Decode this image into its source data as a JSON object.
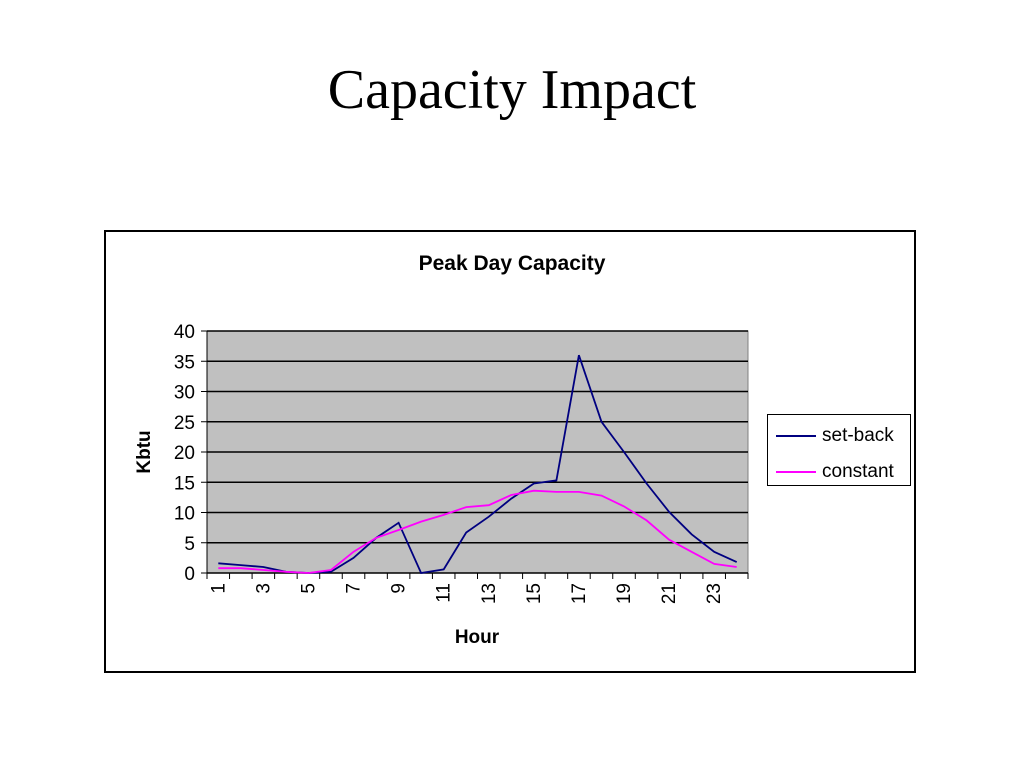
{
  "slide": {
    "title": "Capacity Impact"
  },
  "chart_data": {
    "type": "line",
    "title": "Peak Day Capacity",
    "xlabel": "Hour",
    "ylabel": "Kbtu",
    "x": [
      1,
      2,
      3,
      4,
      5,
      6,
      7,
      8,
      9,
      10,
      11,
      12,
      13,
      14,
      15,
      16,
      17,
      18,
      19,
      20,
      21,
      22,
      23,
      24
    ],
    "x_tick_labels": [
      "1",
      "3",
      "5",
      "7",
      "9",
      "11",
      "13",
      "15",
      "17",
      "19",
      "21",
      "23"
    ],
    "y_ticks": [
      0,
      5,
      10,
      15,
      20,
      25,
      30,
      35,
      40
    ],
    "ylim": [
      0,
      40
    ],
    "grid": true,
    "plot_background": "#c0c0c0",
    "legend_position": "right",
    "series": [
      {
        "name": "set-back",
        "color": "#000080",
        "values": [
          1.6,
          1.3,
          1.0,
          0.2,
          0.0,
          0.2,
          2.5,
          5.8,
          8.3,
          0.0,
          0.6,
          6.7,
          9.3,
          12.3,
          14.8,
          15.3,
          36.0,
          25.0,
          20.0,
          14.8,
          10.1,
          6.4,
          3.5,
          1.8
        ]
      },
      {
        "name": "constant",
        "color": "#ff00ff",
        "values": [
          0.8,
          0.8,
          0.5,
          0.2,
          0.0,
          0.5,
          3.5,
          5.8,
          7.1,
          8.5,
          9.6,
          10.9,
          11.2,
          12.9,
          13.6,
          13.4,
          13.4,
          12.8,
          11.0,
          8.7,
          5.5,
          3.5,
          1.5,
          1.0
        ]
      }
    ]
  }
}
